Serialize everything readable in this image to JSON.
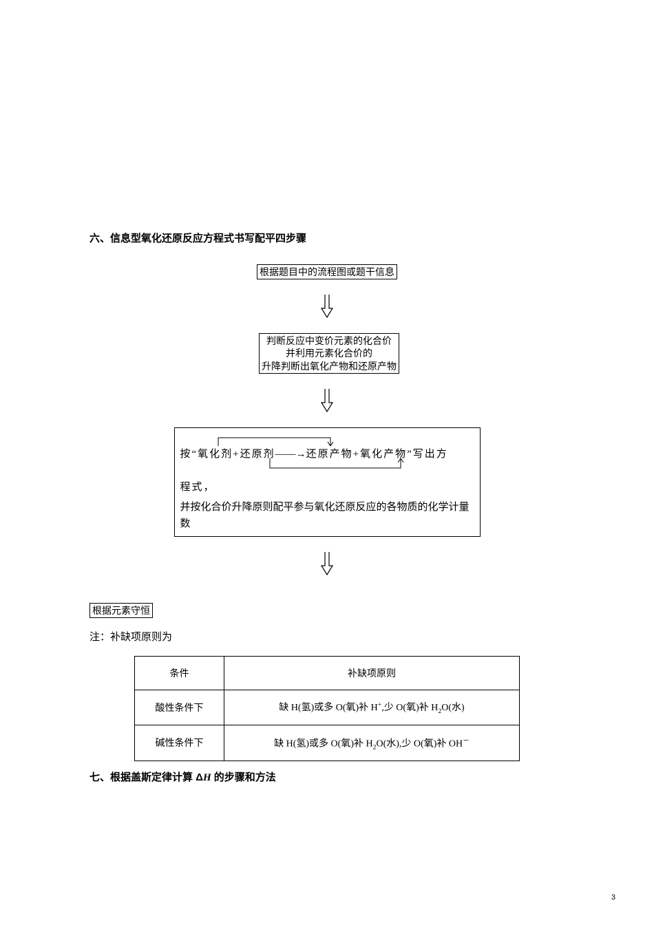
{
  "heading6": "六、信息型氧化还原反应方程式书写配平四步骤",
  "flow": {
    "step1": "根据题目中的流程图或题干信息",
    "step2_line1": "判断反应中变价元素的化合价",
    "step2_line2": "并利用元素化合价的",
    "step2_line3": "升降判断出氧化产物和还原产物",
    "step3_prefix": "按“氧化剂+还原剂",
    "step3_arrow": "——→",
    "step3_mid": "还原产物+氧化产物”写出方",
    "step3_line2": "程式，",
    "step3_line3": "并按化合价升降原则配平参与氧化还原反应的各物质的化学计量数",
    "step4": "根据元素守恒"
  },
  "note_label": "注：补缺项原则为",
  "table": {
    "header_col1": "条件",
    "header_col2": "补缺项原则",
    "rows": [
      {
        "cond": "酸性条件下",
        "rule": "缺 H(氢)或多 O(氧)补 H<sup class=\"sup\">+</sup>,少 O(氧)补 H<span class=\"sub\">2</span>O(水)"
      },
      {
        "cond": "碱性条件下",
        "rule": "缺 H(氢)或多 O(氧)补 H<span class=\"sub\">2</span>O(水),少 O(氧)补 OH<sup class=\"sup\">－</sup>"
      }
    ]
  },
  "heading7_pre": "七、根据盖斯定律计算 Δ",
  "heading7_H": "H",
  "heading7_post": " 的步骤和方法",
  "page_number": "3",
  "colors": {
    "text": "#000000",
    "background": "#ffffff",
    "border": "#000000"
  },
  "arrow": {
    "stroke": "#000000",
    "stroke_width": 1.2,
    "width": 18,
    "height": 34
  }
}
